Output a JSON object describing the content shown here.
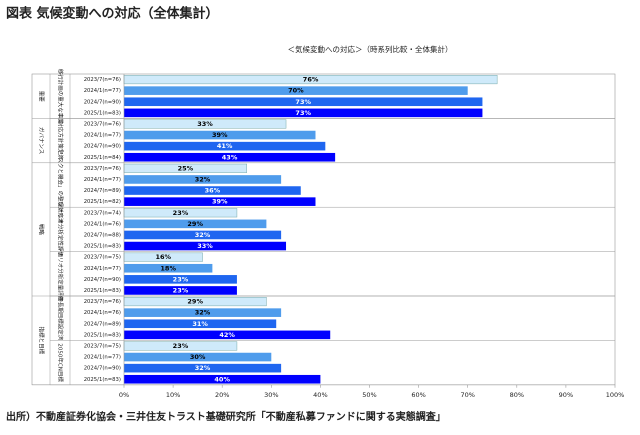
{
  "header": {
    "title": "図表 気候変動への対応（全体集計）"
  },
  "chart_data": {
    "type": "grouped-hbar",
    "subtitle": "＜気候変動への対応＞（時系列比較・全体集計）",
    "colors": [
      "#cfeafa",
      "#4f9cec",
      "#1f66f0",
      "#0000ff"
    ],
    "xlim": [
      0,
      100
    ],
    "xticks": [
      {
        "value": 0,
        "label": "0%"
      },
      {
        "value": 10,
        "label": "10%"
      },
      {
        "value": 20,
        "label": "20%"
      },
      {
        "value": 30,
        "label": "30%"
      },
      {
        "value": 40,
        "label": "40%"
      },
      {
        "value": 50,
        "label": "50%"
      },
      {
        "value": 60,
        "label": "60%"
      },
      {
        "value": 70,
        "label": "70%"
      },
      {
        "value": 80,
        "label": "80%"
      },
      {
        "value": 90,
        "label": "90%"
      },
      {
        "value": 100,
        "label": "100%"
      }
    ],
    "sections": [
      {
        "name": "重要",
        "groups": [
          {
            "name": "移行計画の重大な事業",
            "categories": [
              "2023/7(n=76)",
              "2024/1(n=77)",
              "2024/7(n=90)",
              "2025/1(n=83)"
            ],
            "values": [
              76,
              70,
              73,
              73
            ],
            "value_labels": [
              "76%",
              "70%",
              "73%",
              "73%"
            ]
          }
        ]
      },
      {
        "name": "ガバナンス",
        "groups": [
          {
            "name": "対応方針策定済",
            "categories": [
              "2023/7(n=76)",
              "2024/1(n=77)",
              "2024/7(n=90)",
              "2025/1(n=84)"
            ],
            "values": [
              33,
              39,
              41,
              43
            ],
            "value_labels": [
              "33%",
              "39%",
              "41%",
              "43%"
            ]
          }
        ]
      },
      {
        "name": "戦略",
        "groups": [
          {
            "name": "「リスクと機会」の整理対応済",
            "categories": [
              "2023/7(n=76)",
              "2024/1(n=77)",
              "2024/7(n=89)",
              "2025/1(n=82)"
            ],
            "values": [
              25,
              32,
              36,
              39
            ],
            "value_labels": [
              "25%",
              "32%",
              "36%",
              "39%"
            ]
          },
          {
            "name": "シナリオ分析定性評価",
            "categories": [
              "2023/7(n=74)",
              "2024/1(n=76)",
              "2024/7(n=88)",
              "2025/1(n=83)"
            ],
            "values": [
              23,
              29,
              32,
              33
            ],
            "value_labels": [
              "23%",
              "29%",
              "32%",
              "33%"
            ]
          },
          {
            "name": "シナリオ分析定量評価",
            "categories": [
              "2023/7(n=75)",
              "2024/1(n=77)",
              "2024/7(n=90)",
              "2025/1(n=83)"
            ],
            "values": [
              16,
              18,
              23,
              23
            ],
            "value_labels": [
              "16%",
              "18%",
              "23%",
              "23%"
            ]
          }
        ]
      },
      {
        "name": "指標と目標",
        "groups": [
          {
            "name": "中長期目標設定済",
            "categories": [
              "2023/7(n=76)",
              "2024/1(n=76)",
              "2024/7(n=89)",
              "2025/1(n=83)"
            ],
            "values": [
              29,
              32,
              31,
              42
            ],
            "value_labels": [
              "29%",
              "32%",
              "31%",
              "42%"
            ]
          },
          {
            "name": "2050年CN目標",
            "categories": [
              "2023/7(n=75)",
              "2024/1(n=77)",
              "2024/7(n=90)",
              "2025/1(n=83)"
            ],
            "values": [
              23,
              30,
              32,
              40
            ],
            "value_labels": [
              "23%",
              "30%",
              "32%",
              "40%"
            ]
          }
        ]
      }
    ]
  },
  "footer": {
    "source": "出所）不動産証券化協会・三井住友トラスト基礎研究所「不動産私募ファンドに関する実態調査」"
  }
}
